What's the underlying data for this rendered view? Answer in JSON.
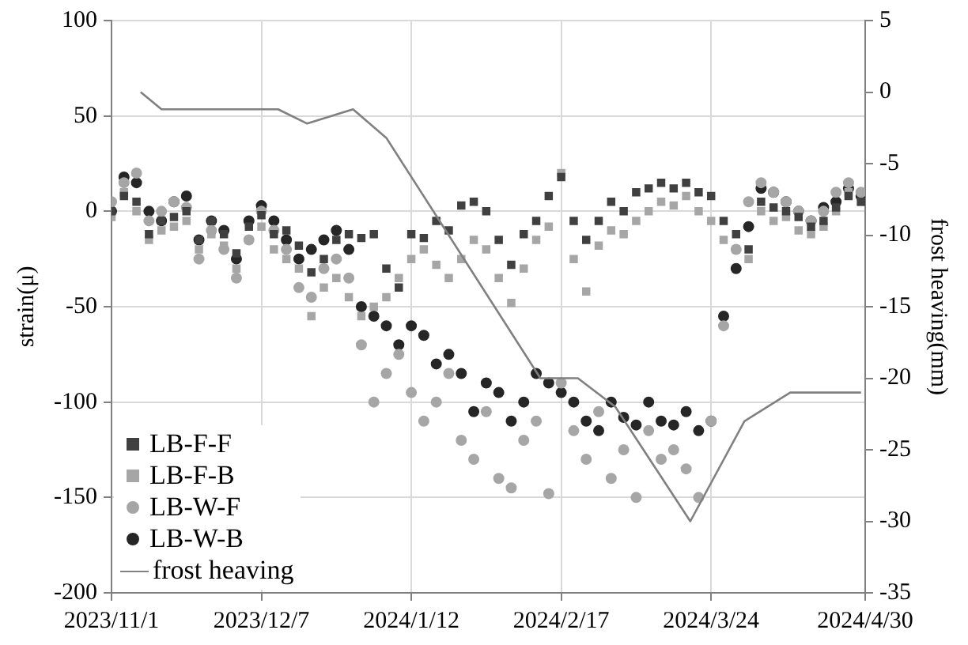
{
  "chart_data": {
    "type": "scatter",
    "ylabel": "strain(μ)",
    "y2label": "frost heaving(mm)",
    "x": [
      "2023-11-01",
      "2023-11-04",
      "2023-11-07",
      "2023-11-10",
      "2023-11-13",
      "2023-11-16",
      "2023-11-19",
      "2023-11-22",
      "2023-11-25",
      "2023-11-28",
      "2023-12-01",
      "2023-12-04",
      "2023-12-07",
      "2023-12-10",
      "2023-12-13",
      "2023-12-16",
      "2023-12-19",
      "2023-12-22",
      "2023-12-25",
      "2023-12-28",
      "2023-12-31",
      "2024-01-03",
      "2024-01-06",
      "2024-01-09",
      "2024-01-12",
      "2024-01-15",
      "2024-01-18",
      "2024-01-21",
      "2024-01-24",
      "2024-01-27",
      "2024-01-30",
      "2024-02-02",
      "2024-02-05",
      "2024-02-08",
      "2024-02-11",
      "2024-02-14",
      "2024-02-17",
      "2024-02-20",
      "2024-02-23",
      "2024-02-26",
      "2024-02-29",
      "2024-03-03",
      "2024-03-06",
      "2024-03-09",
      "2024-03-12",
      "2024-03-15",
      "2024-03-18",
      "2024-03-21",
      "2024-03-24",
      "2024-03-27",
      "2024-03-30",
      "2024-04-02",
      "2024-04-05",
      "2024-04-08",
      "2024-04-11",
      "2024-04-14",
      "2024-04-17",
      "2024-04-20",
      "2024-04-23",
      "2024-04-26",
      "2024-04-29"
    ],
    "series": [
      {
        "name": "LB-F-F",
        "color": "#404040",
        "marker": "square",
        "values": [
          0,
          8,
          5,
          -12,
          -5,
          -3,
          0,
          -15,
          -5,
          -12,
          -22,
          -8,
          -2,
          -12,
          -10,
          -18,
          -32,
          -25,
          -15,
          -12,
          -14,
          -12,
          -30,
          -40,
          -12,
          -14,
          -5,
          -10,
          3,
          5,
          0,
          -15,
          -28,
          -12,
          -5,
          8,
          18,
          -5,
          -15,
          -5,
          5,
          0,
          10,
          12,
          15,
          12,
          15,
          10,
          8,
          -5,
          -12,
          -20,
          5,
          2,
          0,
          -3,
          -8,
          -5,
          2,
          8,
          5
        ]
      },
      {
        "name": "LB-F-B",
        "color": "#a6a6a6",
        "marker": "square",
        "values": [
          -3,
          10,
          0,
          -15,
          -10,
          -8,
          -5,
          -20,
          -12,
          -18,
          -30,
          -15,
          -8,
          -20,
          -25,
          -30,
          -55,
          -40,
          -35,
          -45,
          -55,
          -50,
          -45,
          -35,
          -25,
          -20,
          -28,
          -35,
          -25,
          -15,
          -20,
          -35,
          -48,
          -30,
          -15,
          -8,
          20,
          -25,
          -42,
          -18,
          -10,
          -12,
          -5,
          0,
          5,
          3,
          8,
          0,
          -5,
          -15,
          -20,
          -25,
          0,
          -5,
          -3,
          -10,
          -12,
          -8,
          0,
          10,
          5
        ]
      },
      {
        "name": "LB-W-F",
        "color": "#a6a6a6",
        "marker": "circle",
        "values": [
          5,
          15,
          20,
          -5,
          0,
          5,
          2,
          -25,
          -10,
          -20,
          -35,
          -15,
          0,
          -10,
          -20,
          -40,
          -45,
          -30,
          -25,
          -35,
          -70,
          -100,
          -85,
          -75,
          -95,
          -110,
          -100,
          -85,
          -120,
          -130,
          -105,
          -140,
          -145,
          -120,
          -110,
          -148,
          -90,
          -115,
          -130,
          -105,
          -140,
          -125,
          -150,
          -115,
          -130,
          -125,
          -135,
          -150,
          -110,
          -60,
          -20,
          5,
          15,
          10,
          5,
          0,
          -5,
          0,
          10,
          15,
          10
        ]
      },
      {
        "name": "LB-W-B",
        "color": "#262626",
        "marker": "circle",
        "values": [
          0,
          18,
          15,
          0,
          -5,
          5,
          8,
          -15,
          -5,
          -10,
          -25,
          -5,
          3,
          -5,
          -15,
          -25,
          -20,
          -15,
          -10,
          -20,
          -50,
          -55,
          -60,
          -70,
          -60,
          -65,
          -80,
          -75,
          -85,
          -105,
          -90,
          -95,
          -110,
          -100,
          -85,
          -90,
          -95,
          -100,
          -110,
          -115,
          -100,
          -108,
          -112,
          -100,
          -110,
          -112,
          -105,
          -115,
          -110,
          -55,
          -30,
          -8,
          12,
          10,
          5,
          0,
          -5,
          2,
          5,
          12,
          8
        ]
      },
      {
        "name": "frost heaving",
        "type": "line",
        "axis": "y2",
        "color": "#808080",
        "marker": "none",
        "x": [
          "2023-11-08",
          "2023-11-13",
          "2023-12-11",
          "2023-12-18",
          "2023-12-29",
          "2024-01-06",
          "2024-02-12",
          "2024-02-21",
          "2024-03-01",
          "2024-03-19",
          "2024-04-01",
          "2024-04-12",
          "2024-04-29"
        ],
        "values": [
          0,
          -1.2,
          -1.2,
          -2.2,
          -1.2,
          -3.2,
          -20,
          -20,
          -22,
          -30,
          -23,
          -21,
          -21
        ]
      }
    ],
    "xlim": [
      "2023-11-01",
      "2024-04-30"
    ],
    "xticks": [
      {
        "value": "2023-11-01",
        "label": "2023/11/1"
      },
      {
        "value": "2023-12-07",
        "label": "2023/12/7"
      },
      {
        "value": "2024-01-12",
        "label": "2024/1/12"
      },
      {
        "value": "2024-02-17",
        "label": "2024/2/17"
      },
      {
        "value": "2024-03-24",
        "label": "2024/3/24"
      },
      {
        "value": "2024-04-30",
        "label": "2024/4/30"
      }
    ],
    "ylim": [
      -200,
      100
    ],
    "yticks": [
      -200,
      -150,
      -100,
      -50,
      0,
      50,
      100
    ],
    "y2lim": [
      -35,
      5
    ],
    "y2ticks": [
      -35,
      -30,
      -25,
      -20,
      -15,
      -10,
      -5,
      0,
      5
    ],
    "grid": true,
    "legend": "bottom left"
  }
}
